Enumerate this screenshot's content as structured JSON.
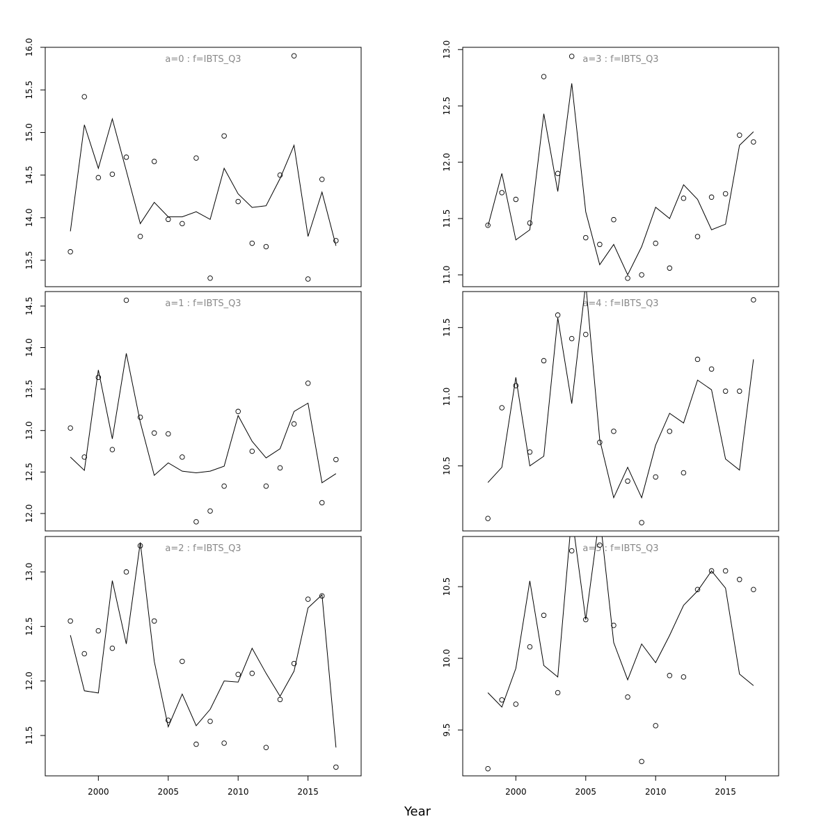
{
  "xlabel": "Year",
  "chart_data": [
    {
      "type": "line",
      "title": "a=0 : f=IBTS_Q3",
      "x": [
        1998,
        1999,
        2000,
        2001,
        2002,
        2003,
        2004,
        2005,
        2006,
        2007,
        2008,
        2009,
        2010,
        2011,
        2012,
        2013,
        2014,
        2015,
        2016,
        2017
      ],
      "series": [
        {
          "style": "line",
          "color": "#000000",
          "values": [
            13.84,
            15.09,
            14.58,
            15.16,
            14.55,
            13.93,
            14.18,
            14.01,
            14.01,
            14.07,
            13.98,
            14.58,
            14.28,
            14.12,
            14.14,
            14.46,
            14.85,
            13.78,
            14.3,
            13.67
          ]
        },
        {
          "style": "points",
          "color": "#000000",
          "values": [
            13.6,
            15.42,
            14.47,
            14.51,
            14.71,
            13.78,
            14.66,
            13.98,
            13.93,
            14.7,
            13.29,
            14.96,
            14.19,
            13.7,
            13.66,
            14.5,
            15.9,
            13.28,
            14.45,
            13.73
          ]
        }
      ],
      "xlim": [
        1996.2,
        2018.8
      ],
      "ylim": [
        13.19,
        16.0
      ],
      "yticks": [
        13.5,
        {
          "value": 14,
          "label": "14.0"
        },
        14.5,
        {
          "value": 15,
          "label": "15.0"
        },
        15.5,
        {
          "value": 16,
          "label": "16.0"
        }
      ]
    },
    {
      "type": "line",
      "title": "a=1 : f=IBTS_Q3",
      "x": [
        1998,
        1999,
        2000,
        2001,
        2002,
        2003,
        2004,
        2005,
        2006,
        2007,
        2008,
        2009,
        2010,
        2011,
        2012,
        2013,
        2014,
        2015,
        2016,
        2017
      ],
      "series": [
        {
          "style": "line",
          "color": "#000000",
          "values": [
            12.68,
            12.52,
            13.73,
            12.9,
            13.93,
            13.1,
            12.46,
            12.61,
            12.51,
            12.49,
            12.51,
            12.57,
            13.18,
            12.87,
            12.67,
            12.78,
            13.23,
            13.33,
            12.37,
            12.48
          ]
        },
        {
          "style": "points",
          "color": "#000000",
          "values": [
            13.03,
            12.68,
            13.64,
            12.77,
            14.57,
            13.16,
            12.97,
            12.96,
            12.68,
            11.9,
            12.03,
            12.33,
            13.23,
            12.75,
            12.33,
            12.55,
            13.08,
            13.57,
            12.13,
            12.65
          ]
        }
      ],
      "xlim": [
        1996.2,
        2018.8
      ],
      "ylim": [
        11.79,
        14.675
      ],
      "yticks": [
        {
          "value": 12,
          "label": "12.0"
        },
        12.5,
        {
          "value": 13,
          "label": "13.0"
        },
        13.5,
        {
          "value": 14,
          "label": "14.0"
        },
        14.5
      ]
    },
    {
      "type": "line",
      "title": "a=2 : f=IBTS_Q3",
      "x": [
        1998,
        1999,
        2000,
        2001,
        2002,
        2003,
        2004,
        2005,
        2006,
        2007,
        2008,
        2009,
        2010,
        2011,
        2012,
        2013,
        2014,
        2015,
        2016,
        2017
      ],
      "series": [
        {
          "style": "line",
          "color": "#000000",
          "values": [
            12.42,
            11.91,
            11.89,
            12.92,
            12.34,
            13.27,
            12.18,
            11.58,
            11.88,
            11.59,
            11.74,
            12.0,
            11.99,
            12.3,
            12.07,
            11.86,
            12.09,
            12.67,
            12.79,
            11.39
          ]
        },
        {
          "style": "points",
          "color": "#000000",
          "values": [
            12.55,
            12.25,
            12.46,
            12.3,
            13.0,
            13.24,
            12.55,
            11.64,
            12.18,
            11.42,
            11.63,
            11.43,
            12.06,
            12.07,
            11.39,
            11.83,
            12.16,
            12.75,
            12.78,
            11.21
          ]
        }
      ],
      "xlim": [
        1996.2,
        2018.8
      ],
      "ylim": [
        11.13,
        13.325
      ],
      "yticks": [
        11.5,
        {
          "value": 12,
          "label": "12.0"
        },
        12.5,
        {
          "value": 13,
          "label": "13.0"
        }
      ],
      "xticks": [
        2000,
        2005,
        2010,
        2015
      ]
    },
    {
      "type": "line",
      "title": "a=3 : f=IBTS_Q3",
      "x": [
        1998,
        1999,
        2000,
        2001,
        2002,
        2003,
        2004,
        2005,
        2006,
        2007,
        2008,
        2009,
        2010,
        2011,
        2012,
        2013,
        2014,
        2015,
        2016,
        2017
      ],
      "series": [
        {
          "style": "line",
          "color": "#000000",
          "values": [
            11.43,
            11.9,
            11.31,
            11.4,
            12.43,
            11.74,
            12.7,
            11.56,
            11.09,
            11.27,
            11.0,
            11.25,
            11.6,
            11.5,
            11.8,
            11.67,
            11.4,
            11.45,
            12.15,
            12.27
          ]
        },
        {
          "style": "points",
          "color": "#000000",
          "values": [
            11.44,
            11.73,
            11.67,
            11.46,
            12.76,
            11.9,
            12.94,
            11.33,
            11.27,
            11.49,
            10.97,
            11.0,
            11.28,
            11.06,
            11.68,
            11.34,
            11.69,
            11.72,
            12.24,
            12.18
          ]
        }
      ],
      "xlim": [
        1996.2,
        2018.8
      ],
      "ylim": [
        10.895,
        13.02
      ],
      "yticks": [
        {
          "value": 11,
          "label": "11.0"
        },
        11.5,
        {
          "value": 12,
          "label": "12.0"
        },
        12.5,
        {
          "value": 13,
          "label": "13.0"
        }
      ]
    },
    {
      "type": "line",
      "title": "a=4 : f=IBTS_Q3",
      "x": [
        1998,
        1999,
        2000,
        2001,
        2002,
        2003,
        2004,
        2005,
        2006,
        2007,
        2008,
        2009,
        2010,
        2011,
        2012,
        2013,
        2014,
        2015,
        2016,
        2017
      ],
      "series": [
        {
          "style": "line",
          "color": "#000000",
          "values": [
            10.38,
            10.49,
            11.14,
            10.5,
            10.57,
            11.57,
            10.95,
            11.82,
            10.69,
            10.27,
            10.49,
            10.27,
            10.65,
            10.88,
            10.81,
            11.12,
            11.05,
            10.55,
            10.47,
            11.27
          ]
        },
        {
          "style": "points",
          "color": "#000000",
          "values": [
            10.12,
            10.92,
            11.08,
            10.6,
            11.26,
            11.59,
            11.42,
            11.45,
            10.67,
            10.75,
            10.39,
            10.09,
            10.42,
            10.75,
            10.45,
            11.27,
            11.2,
            11.04,
            11.04,
            11.7
          ]
        }
      ],
      "xlim": [
        1996.2,
        2018.8
      ],
      "ylim": [
        10.03,
        11.76
      ],
      "yticks": [
        10.5,
        {
          "value": 11,
          "label": "11.0"
        },
        11.5
      ]
    },
    {
      "type": "line",
      "title": "a=5 : f=IBTS_Q3",
      "x": [
        1998,
        1999,
        2000,
        2001,
        2002,
        2003,
        2004,
        2005,
        2006,
        2007,
        2008,
        2009,
        2010,
        2011,
        2012,
        2013,
        2014,
        2015,
        2016,
        2017
      ],
      "series": [
        {
          "style": "line",
          "color": "#000000",
          "values": [
            9.76,
            9.66,
            9.93,
            10.54,
            9.95,
            9.87,
            11.0,
            10.27,
            11.0,
            10.11,
            9.85,
            10.1,
            9.97,
            10.16,
            10.37,
            10.47,
            10.61,
            10.49,
            9.89,
            9.81
          ]
        },
        {
          "style": "points",
          "color": "#000000",
          "values": [
            9.23,
            9.71,
            9.68,
            10.08,
            10.3,
            9.76,
            10.75,
            10.27,
            10.79,
            10.23,
            9.73,
            9.28,
            9.53,
            9.88,
            9.87,
            10.48,
            10.61,
            10.61,
            10.55,
            10.48
          ]
        }
      ],
      "xlim": [
        1996.2,
        2018.8
      ],
      "ylim": [
        9.18,
        10.85
      ],
      "yticks": [
        9.5,
        {
          "value": 10,
          "label": "10.0"
        },
        10.5
      ],
      "xticks": [
        2000,
        2005,
        2010,
        2015
      ]
    }
  ]
}
